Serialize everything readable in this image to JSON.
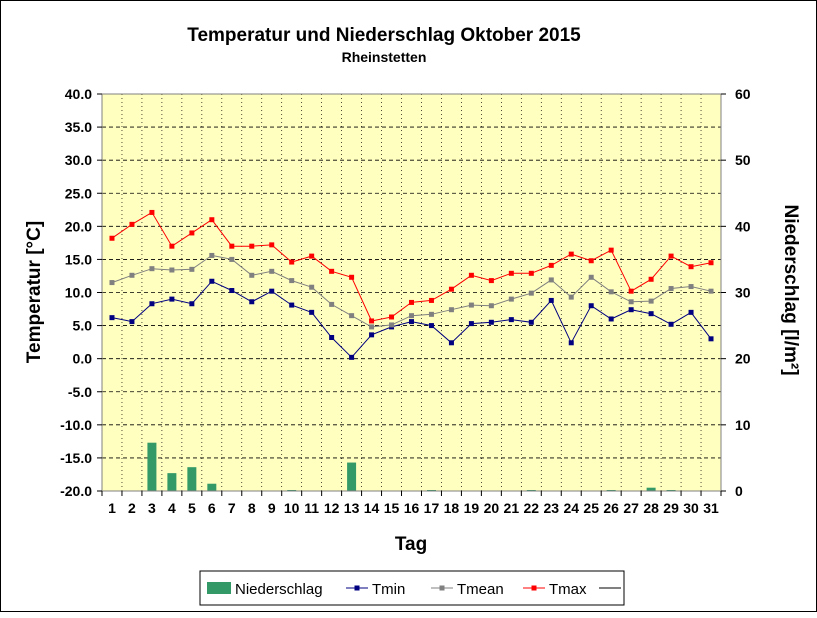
{
  "chart_data": {
    "type": "bar+line",
    "title": "Temperatur und Niederschlag Oktober 2015",
    "subtitle": "Rheinstetten",
    "xlabel": "Tag",
    "ylabel_left": "Temperatur [°C]",
    "ylabel_right": "Niederschlag [l/m²]",
    "ylim_left": [
      -20,
      40
    ],
    "ylim_right": [
      0,
      60
    ],
    "yticks_left": [
      "40.0",
      "35.0",
      "30.0",
      "25.0",
      "20.0",
      "15.0",
      "10.0",
      "5.0",
      "0.0",
      "-5.0",
      "-10.0",
      "-15.0",
      "-20.0"
    ],
    "yticks_right": [
      "60",
      "50",
      "40",
      "30",
      "20",
      "10",
      "0"
    ],
    "categories": [
      "1",
      "2",
      "3",
      "4",
      "5",
      "6",
      "7",
      "8",
      "9",
      "10",
      "11",
      "12",
      "13",
      "14",
      "15",
      "16",
      "17",
      "18",
      "19",
      "20",
      "21",
      "22",
      "23",
      "24",
      "25",
      "26",
      "27",
      "28",
      "29",
      "30",
      "31"
    ],
    "background_color": "#FFFFC0",
    "grid": "horizontal dashed + vertical dotted",
    "legend_position": "bottom",
    "bars": {
      "name": "Niederschlag",
      "color": "#339966",
      "axis": "right",
      "values": [
        0,
        0,
        7.3,
        2.7,
        3.6,
        1.1,
        0,
        0,
        0,
        0.1,
        0,
        0,
        4.3,
        0,
        0,
        0,
        0.1,
        0,
        0,
        0,
        0,
        0.1,
        0,
        0,
        0,
        0.1,
        0,
        0.5,
        0.1,
        0,
        0
      ]
    },
    "series": [
      {
        "name": "Tmin",
        "color": "#000080",
        "axis": "left",
        "values": [
          6.2,
          5.6,
          8.3,
          9.0,
          8.3,
          11.7,
          10.3,
          8.6,
          10.2,
          8.1,
          7.0,
          3.2,
          0.2,
          3.6,
          4.8,
          5.6,
          5.0,
          2.4,
          5.3,
          5.5,
          5.9,
          5.5,
          8.8,
          2.4,
          8.0,
          6.0,
          7.4,
          6.8,
          5.2,
          7.0,
          3.0
        ]
      },
      {
        "name": "Tmean",
        "color": "#808080",
        "axis": "left",
        "values": [
          11.5,
          12.6,
          13.6,
          13.4,
          13.5,
          15.6,
          15.0,
          12.6,
          13.2,
          11.8,
          10.8,
          8.2,
          6.5,
          4.8,
          5.1,
          6.5,
          6.7,
          7.4,
          8.1,
          8.0,
          9.0,
          9.9,
          11.9,
          9.3,
          12.3,
          10.1,
          8.6,
          8.7,
          10.6,
          10.9,
          10.2
        ]
      },
      {
        "name": "Tmax",
        "color": "#FF0000",
        "axis": "left",
        "values": [
          18.2,
          20.3,
          22.1,
          17.0,
          19.0,
          21.0,
          17.0,
          17.0,
          17.2,
          14.6,
          15.5,
          13.2,
          12.3,
          5.7,
          6.3,
          8.5,
          8.8,
          10.5,
          12.6,
          11.8,
          12.9,
          12.9,
          14.1,
          15.8,
          14.8,
          16.4,
          10.2,
          12.0,
          15.5,
          13.9,
          14.5
        ]
      }
    ],
    "legend": [
      {
        "kind": "bar",
        "label": "Niederschlag",
        "color": "#339966"
      },
      {
        "kind": "line",
        "label": "Tmin",
        "color": "#000080"
      },
      {
        "kind": "line",
        "label": "Tmean",
        "color": "#808080"
      },
      {
        "kind": "line",
        "label": "Tmax",
        "color": "#FF0000"
      },
      {
        "kind": "plain-line",
        "label": "",
        "color": "#000000"
      }
    ]
  }
}
